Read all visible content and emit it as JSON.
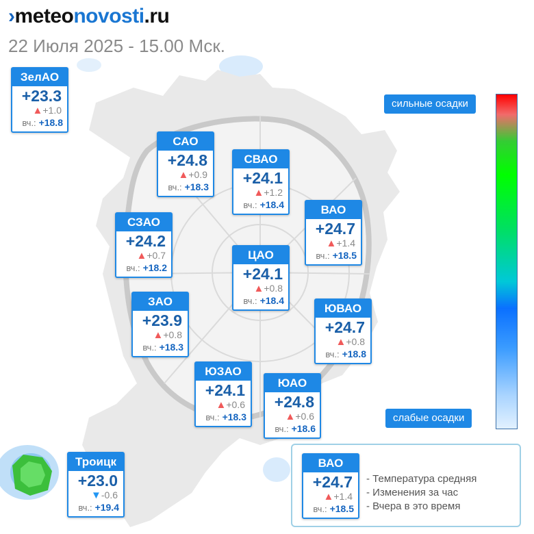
{
  "header": {
    "logo_mark": "›",
    "logo_part1": "meteo",
    "logo_part2": "novosti",
    "logo_part3": ".ru",
    "date": "22 Июля 2025 - 15.00 Мск."
  },
  "yesterday_label": "вч.:",
  "districts": [
    {
      "name": "ЗелАО",
      "temp": "+23.3",
      "trend": "up",
      "change": "+1.0",
      "yesterday": "+18.8"
    },
    {
      "name": "САО",
      "temp": "+24.8",
      "trend": "up",
      "change": "+0.9",
      "yesterday": "+18.3"
    },
    {
      "name": "СВАО",
      "temp": "+24.1",
      "trend": "up",
      "change": "+1.2",
      "yesterday": "+18.4"
    },
    {
      "name": "ВАО",
      "temp": "+24.7",
      "trend": "up",
      "change": "+1.4",
      "yesterday": "+18.5"
    },
    {
      "name": "СЗАО",
      "temp": "+24.2",
      "trend": "up",
      "change": "+0.7",
      "yesterday": "+18.2"
    },
    {
      "name": "ЦАО",
      "temp": "+24.1",
      "trend": "up",
      "change": "+0.8",
      "yesterday": "+18.4"
    },
    {
      "name": "ЗАО",
      "temp": "+23.9",
      "trend": "up",
      "change": "+0.8",
      "yesterday": "+18.3"
    },
    {
      "name": "ЮВАО",
      "temp": "+24.7",
      "trend": "up",
      "change": "+0.8",
      "yesterday": "+18.8"
    },
    {
      "name": "ЮЗАО",
      "temp": "+24.1",
      "trend": "up",
      "change": "+0.6",
      "yesterday": "+18.3"
    },
    {
      "name": "ЮАО",
      "temp": "+24.8",
      "trend": "up",
      "change": "+0.6",
      "yesterday": "+18.6"
    },
    {
      "name": "Троицк",
      "temp": "+23.0",
      "trend": "down",
      "change": "-0.6",
      "yesterday": "+19.4"
    }
  ],
  "scale": {
    "top_label": "сильные осадки",
    "bottom_label": "слабые осадки"
  },
  "legend": {
    "example": {
      "name": "ВАО",
      "temp": "+24.7",
      "trend": "up",
      "change": "+1.4",
      "yesterday": "+18.5"
    },
    "lines": [
      "- Температура средняя",
      "- Изменения за час",
      "- Вчера в это время"
    ]
  },
  "colors": {
    "accent": "#1e88e5",
    "temp_text": "#1a5fa8",
    "trend_up": "#f05a5a",
    "trend_down": "#2196f3"
  },
  "icons": {
    "trend_up": "triangle-up-icon",
    "trend_down": "triangle-down-icon"
  }
}
